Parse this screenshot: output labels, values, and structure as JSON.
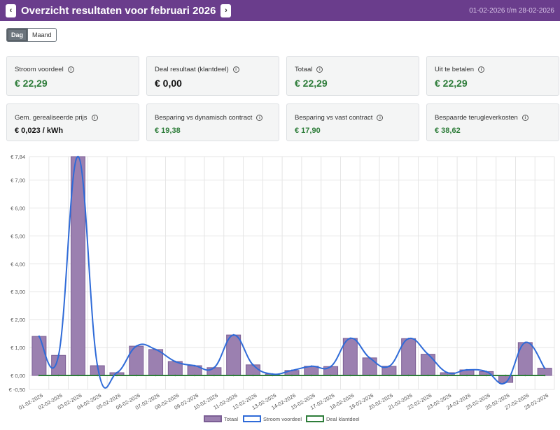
{
  "header": {
    "prev_icon": "chevron-left-icon",
    "next_icon": "chevron-right-icon",
    "prev_glyph": "‹",
    "next_glyph": "›",
    "title": "Overzicht resultaten voor februari 2026",
    "range": "01-02-2026 t/m 28-02-2026"
  },
  "toggle": {
    "day": "Dag",
    "month": "Maand",
    "selected": "Dag"
  },
  "cards_row1": [
    {
      "label": "Stroom voordeel",
      "value": "€ 22,29",
      "color": "#2e7d3a"
    },
    {
      "label": "Deal resultaat (klantdeel)",
      "value": "€ 0,00",
      "color": "#111111"
    },
    {
      "label": "Totaal",
      "value": "€ 22,29",
      "color": "#2e7d3a"
    },
    {
      "label": "Uit te betalen",
      "value": "€ 22,29",
      "color": "#2e7d3a"
    }
  ],
  "cards_row2": [
    {
      "label": "Gem. gerealiseerde prijs",
      "value": "€ 0,023 / kWh",
      "color": "#111111"
    },
    {
      "label": "Besparing vs dynamisch contract",
      "value": "€ 19,38",
      "color": "#2e7d3a"
    },
    {
      "label": "Besparing vs vast contract",
      "value": "€ 17,90",
      "color": "#2e7d3a"
    },
    {
      "label": "Bespaarde terugleverkosten",
      "value": "€ 38,62",
      "color": "#2e7d3a"
    }
  ],
  "info_icon": "info-circle-icon",
  "chart_data": {
    "type": "bar",
    "categories": [
      "01-02-2026",
      "02-02-2026",
      "03-02-2026",
      "04-02-2026",
      "05-02-2026",
      "06-02-2026",
      "07-02-2026",
      "08-02-2026",
      "09-02-2026",
      "10-02-2026",
      "11-02-2026",
      "12-02-2026",
      "13-02-2026",
      "14-02-2026",
      "15-02-2026",
      "17-02-2026",
      "18-02-2026",
      "19-02-2026",
      "20-02-2026",
      "21-02-2026",
      "22-02-2026",
      "23-02-2026",
      "24-02-2026",
      "25-02-2026",
      "26-02-2026",
      "27-02-2026",
      "28-02-2026"
    ],
    "ylim": [
      -0.5,
      7.84
    ],
    "y_ticks": [
      -0.5,
      0,
      1,
      2,
      3,
      4,
      5,
      6,
      7,
      7.84
    ],
    "y_tick_labels": [
      "€ -0,50",
      "€ 0,00",
      "€ 1,00",
      "€ 2,00",
      "€ 3,00",
      "€ 4,00",
      "€ 5,00",
      "€ 6,00",
      "€ 7,00",
      "€ 7,84"
    ],
    "grid": true,
    "legend_position": "bottom",
    "series": [
      {
        "name": "Totaal",
        "kind": "bar",
        "color": "#9b80b0",
        "border": "#7b5e94",
        "values": [
          1.4,
          0.72,
          7.84,
          0.35,
          0.1,
          1.05,
          0.93,
          0.5,
          0.35,
          0.28,
          1.45,
          0.38,
          0.05,
          0.18,
          0.33,
          0.32,
          1.33,
          0.63,
          0.33,
          1.32,
          0.76,
          0.1,
          0.2,
          0.14,
          -0.25,
          1.18,
          0.26
        ]
      },
      {
        "name": "Stroom voordeel",
        "kind": "line",
        "color": "#2f6bd8",
        "values": [
          1.4,
          0.72,
          7.84,
          0.35,
          0.1,
          1.05,
          0.93,
          0.5,
          0.35,
          0.28,
          1.45,
          0.38,
          0.05,
          0.18,
          0.33,
          0.32,
          1.33,
          0.63,
          0.33,
          1.32,
          0.76,
          0.1,
          0.2,
          0.14,
          -0.25,
          1.18,
          0.26
        ]
      },
      {
        "name": "Deal klantdeel",
        "kind": "line",
        "color": "#2e7d3a",
        "values": [
          0,
          0,
          0,
          0,
          0,
          0,
          0,
          0,
          0,
          0,
          0,
          0,
          0,
          0,
          0,
          0,
          0,
          0,
          0,
          0,
          0,
          0,
          0,
          0,
          0,
          0,
          0
        ]
      }
    ]
  }
}
